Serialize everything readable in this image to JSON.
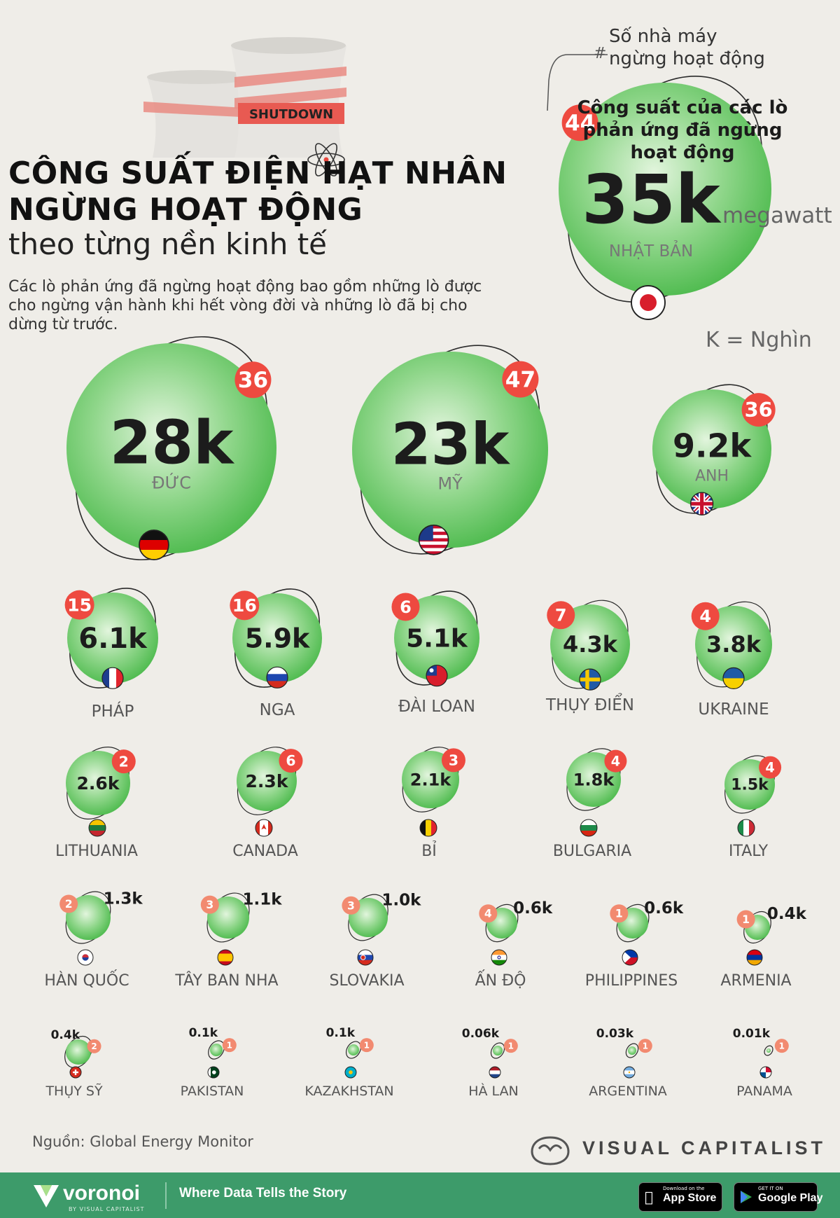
{
  "header": {
    "title_line1": "CÔNG SUẤT ĐIỆN HẠT NHÂN",
    "title_line2": "NGỪNG HOẠT ĐỘNG",
    "subtitle": "theo từng nền kinh tế",
    "description": "Các lò phản ứng đã ngừng hoạt động bao gồm những lò được cho ngừng vận hành khi hết vòng đời và những lò đã bị cho dừng từ trước."
  },
  "legend": {
    "count_line1": "Số nhà máy",
    "count_line2": "ngừng hoạt động",
    "hash": "#",
    "capacity_label": "Công suất của các lò phản ứng đã ngừng hoạt động",
    "unit": "megawatt",
    "k_note": "K = Nghìn"
  },
  "banner": {
    "shutdown_label": "SHUTDOWN"
  },
  "chart_data": {
    "type": "bubble",
    "unit": "megawatt",
    "items": [
      {
        "country": "NHẬT BẢN",
        "capacity_label": "35k",
        "capacity_mw": 35000,
        "reactors": 44,
        "flag": "japan",
        "color": "#5fc35d"
      },
      {
        "country": "ĐỨC",
        "capacity_label": "28k",
        "capacity_mw": 28000,
        "reactors": 36,
        "flag": "germany",
        "color": "#5fc35d"
      },
      {
        "country": "MỸ",
        "capacity_label": "23k",
        "capacity_mw": 23000,
        "reactors": 47,
        "flag": "usa",
        "color": "#5fc35d"
      },
      {
        "country": "ANH",
        "capacity_label": "9.2k",
        "capacity_mw": 9200,
        "reactors": 36,
        "flag": "uk",
        "color": "#5fc35d"
      },
      {
        "country": "PHÁP",
        "capacity_label": "6.1k",
        "capacity_mw": 6100,
        "reactors": 15,
        "flag": "france",
        "color": "#5fc35d"
      },
      {
        "country": "NGA",
        "capacity_label": "5.9k",
        "capacity_mw": 5900,
        "reactors": 16,
        "flag": "russia",
        "color": "#5fc35d"
      },
      {
        "country": "ĐÀI LOAN",
        "capacity_label": "5.1k",
        "capacity_mw": 5100,
        "reactors": 6,
        "flag": "taiwan",
        "color": "#5fc35d"
      },
      {
        "country": "THỤY ĐIỂN",
        "capacity_label": "4.3k",
        "capacity_mw": 4300,
        "reactors": 7,
        "flag": "sweden",
        "color": "#5fc35d"
      },
      {
        "country": "UKRAINE",
        "capacity_label": "3.8k",
        "capacity_mw": 3800,
        "reactors": 4,
        "flag": "ukraine",
        "color": "#5fc35d"
      },
      {
        "country": "LITHUANIA",
        "capacity_label": "2.6k",
        "capacity_mw": 2600,
        "reactors": 2,
        "flag": "lithuania",
        "color": "#5fc35d"
      },
      {
        "country": "CANADA",
        "capacity_label": "2.3k",
        "capacity_mw": 2300,
        "reactors": 6,
        "flag": "canada",
        "color": "#5fc35d"
      },
      {
        "country": "BỈ",
        "capacity_label": "2.1k",
        "capacity_mw": 2100,
        "reactors": 3,
        "flag": "belgium",
        "color": "#5fc35d"
      },
      {
        "country": "BULGARIA",
        "capacity_label": "1.8k",
        "capacity_mw": 1800,
        "reactors": 4,
        "flag": "bulgaria",
        "color": "#5fc35d"
      },
      {
        "country": "ITALY",
        "capacity_label": "1.5k",
        "capacity_mw": 1500,
        "reactors": 4,
        "flag": "italy",
        "color": "#5fc35d"
      },
      {
        "country": "HÀN QUỐC",
        "capacity_label": "1.3k",
        "capacity_mw": 1300,
        "reactors": 2,
        "flag": "south-korea",
        "color": "#5fc35d"
      },
      {
        "country": "TÂY BAN NHA",
        "capacity_label": "1.1k",
        "capacity_mw": 1100,
        "reactors": 3,
        "flag": "spain",
        "color": "#5fc35d"
      },
      {
        "country": "SLOVAKIA",
        "capacity_label": "1.0k",
        "capacity_mw": 1000,
        "reactors": 3,
        "flag": "slovakia",
        "color": "#5fc35d"
      },
      {
        "country": "ẤN ĐỘ",
        "capacity_label": "0.6k",
        "capacity_mw": 600,
        "reactors": 4,
        "flag": "india",
        "color": "#5fc35d"
      },
      {
        "country": "PHILIPPINES",
        "capacity_label": "0.6k",
        "capacity_mw": 600,
        "reactors": 1,
        "flag": "philippines",
        "color": "#5fc35d"
      },
      {
        "country": "ARMENIA",
        "capacity_label": "0.4k",
        "capacity_mw": 400,
        "reactors": 1,
        "flag": "armenia",
        "color": "#5fc35d"
      },
      {
        "country": "THỤY SỸ",
        "capacity_label": "0.4k",
        "capacity_mw": 400,
        "reactors": 2,
        "flag": "switzerland",
        "color": "#5fc35d"
      },
      {
        "country": "PAKISTAN",
        "capacity_label": "0.1k",
        "capacity_mw": 100,
        "reactors": 1,
        "flag": "pakistan",
        "color": "#5fc35d"
      },
      {
        "country": "KAZAKHSTAN",
        "capacity_label": "0.1k",
        "capacity_mw": 100,
        "reactors": 1,
        "flag": "kazakhstan",
        "color": "#5fc35d"
      },
      {
        "country": "HÀ LAN",
        "capacity_label": "0.06k",
        "capacity_mw": 60,
        "reactors": 1,
        "flag": "netherlands",
        "color": "#5fc35d"
      },
      {
        "country": "ARGENTINA",
        "capacity_label": "0.03k",
        "capacity_mw": 30,
        "reactors": 1,
        "flag": "argentina",
        "color": "#5fc35d"
      },
      {
        "country": "PANAMA",
        "capacity_label": "0.01k",
        "capacity_mw": 10,
        "reactors": 1,
        "flag": "panama",
        "color": "#5fc35d"
      }
    ]
  },
  "footer": {
    "source": "Nguồn: Global Energy Monitor",
    "publisher": "VISUAL CAPITALIST",
    "brand": "voronoi",
    "brand_sub": "BY VISUAL CAPITALIST",
    "tagline": "Where Data Tells the Story",
    "app_store_small": "Download on the",
    "app_store_big": "App Store",
    "google_play_small": "GET IT ON",
    "google_play_big": "Google Play"
  }
}
